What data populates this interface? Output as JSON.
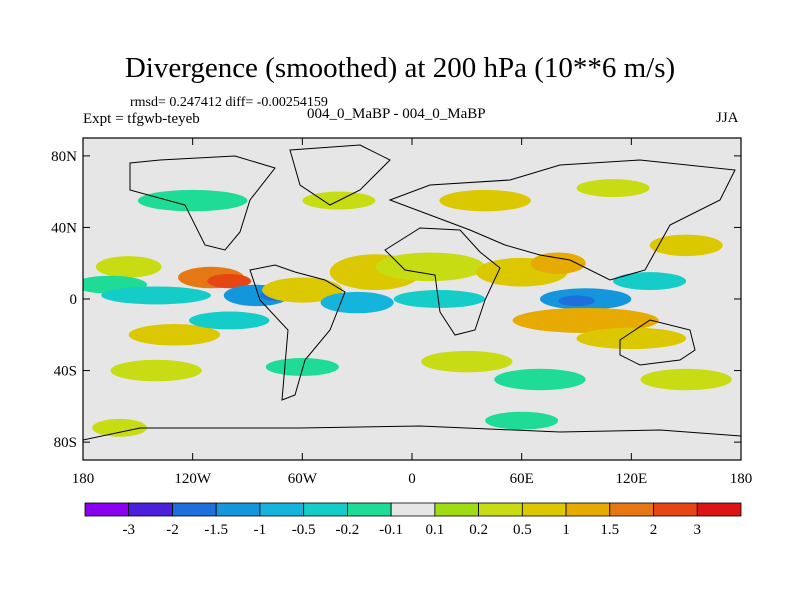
{
  "chart_data": {
    "type": "heatmap",
    "title": "Divergence (smoothed) at 200 hPa (10**6 m/s)",
    "stats_line": "rmsd= 0.247412 diff= -0.00254159",
    "expt_label": "Expt = tfgwb-teyeb",
    "case_label": "004_0_MaBP - 004_0_MaBP",
    "season": "JJA",
    "x_range": [
      -180,
      180
    ],
    "y_range": [
      -90,
      90
    ],
    "x_ticks": [
      {
        "value": -180,
        "label": "180"
      },
      {
        "value": -120,
        "label": "120W"
      },
      {
        "value": -60,
        "label": "60W"
      },
      {
        "value": 0,
        "label": "0"
      },
      {
        "value": 60,
        "label": "60E"
      },
      {
        "value": 120,
        "label": "120E"
      },
      {
        "value": 180,
        "label": "180"
      }
    ],
    "y_ticks": [
      {
        "value": 80,
        "label": "80N"
      },
      {
        "value": 40,
        "label": "40N"
      },
      {
        "value": 0,
        "label": "0"
      },
      {
        "value": -40,
        "label": "40S"
      },
      {
        "value": -80,
        "label": "80S"
      }
    ],
    "colorbar": {
      "colors": [
        "#8a00f0",
        "#4a20dc",
        "#1e6edc",
        "#1496dc",
        "#14b4dc",
        "#14cdc8",
        "#1edc96",
        "#e6e6e6",
        "#a0dc14",
        "#c8dc14",
        "#dcc800",
        "#e6aa00",
        "#e67814",
        "#e64614",
        "#dc1414"
      ],
      "labels": [
        "-3",
        "-2",
        "-1.5",
        "-1",
        "-0.5",
        "-0.2",
        "-0.1",
        "0.1",
        "0.2",
        "0.5",
        "1",
        "1.5",
        "2",
        "3"
      ]
    },
    "regions": [
      {
        "lon": -155,
        "lat": 18,
        "w": 18,
        "h": 6,
        "level": 9
      },
      {
        "lon": -165,
        "lat": 8,
        "w": 20,
        "h": 5,
        "level": 6
      },
      {
        "lon": -140,
        "lat": 2,
        "w": 30,
        "h": 5,
        "level": 5
      },
      {
        "lon": -110,
        "lat": 12,
        "w": 18,
        "h": 6,
        "level": 12
      },
      {
        "lon": -100,
        "lat": 10,
        "w": 12,
        "h": 4,
        "level": 13
      },
      {
        "lon": -85,
        "lat": 2,
        "w": 18,
        "h": 6,
        "level": 3
      },
      {
        "lon": -75,
        "lat": 2,
        "w": 8,
        "h": 3,
        "level": 2
      },
      {
        "lon": -60,
        "lat": 5,
        "w": 22,
        "h": 7,
        "level": 10
      },
      {
        "lon": -30,
        "lat": -2,
        "w": 20,
        "h": 6,
        "level": 4
      },
      {
        "lon": -20,
        "lat": 15,
        "w": 25,
        "h": 10,
        "level": 10
      },
      {
        "lon": 10,
        "lat": 18,
        "w": 30,
        "h": 8,
        "level": 9
      },
      {
        "lon": 15,
        "lat": 0,
        "w": 25,
        "h": 5,
        "level": 5
      },
      {
        "lon": 60,
        "lat": 15,
        "w": 25,
        "h": 8,
        "level": 10
      },
      {
        "lon": 80,
        "lat": 20,
        "w": 15,
        "h": 6,
        "level": 11
      },
      {
        "lon": 95,
        "lat": 0,
        "w": 25,
        "h": 6,
        "level": 3
      },
      {
        "lon": 90,
        "lat": -1,
        "w": 10,
        "h": 3,
        "level": 2
      },
      {
        "lon": 95,
        "lat": -12,
        "w": 40,
        "h": 7,
        "level": 11
      },
      {
        "lon": 120,
        "lat": -22,
        "w": 30,
        "h": 6,
        "level": 10
      },
      {
        "lon": 150,
        "lat": 30,
        "w": 20,
        "h": 6,
        "level": 10
      },
      {
        "lon": 130,
        "lat": 10,
        "w": 20,
        "h": 5,
        "level": 5
      },
      {
        "lon": -130,
        "lat": -20,
        "w": 25,
        "h": 6,
        "level": 10
      },
      {
        "lon": -100,
        "lat": -12,
        "w": 22,
        "h": 5,
        "level": 5
      },
      {
        "lon": -140,
        "lat": -40,
        "w": 25,
        "h": 6,
        "level": 9
      },
      {
        "lon": -60,
        "lat": -38,
        "w": 20,
        "h": 5,
        "level": 6
      },
      {
        "lon": 30,
        "lat": -35,
        "w": 25,
        "h": 6,
        "level": 9
      },
      {
        "lon": 70,
        "lat": -45,
        "w": 25,
        "h": 6,
        "level": 6
      },
      {
        "lon": 150,
        "lat": -45,
        "w": 25,
        "h": 6,
        "level": 9
      },
      {
        "lon": -120,
        "lat": 55,
        "w": 30,
        "h": 6,
        "level": 6
      },
      {
        "lon": -40,
        "lat": 55,
        "w": 20,
        "h": 5,
        "level": 9
      },
      {
        "lon": 40,
        "lat": 55,
        "w": 25,
        "h": 6,
        "level": 10
      },
      {
        "lon": 110,
        "lat": 62,
        "w": 20,
        "h": 5,
        "level": 9
      },
      {
        "lon": -160,
        "lat": -72,
        "w": 15,
        "h": 5,
        "level": 9
      },
      {
        "lon": 60,
        "lat": -68,
        "w": 20,
        "h": 5,
        "level": 6
      }
    ]
  }
}
